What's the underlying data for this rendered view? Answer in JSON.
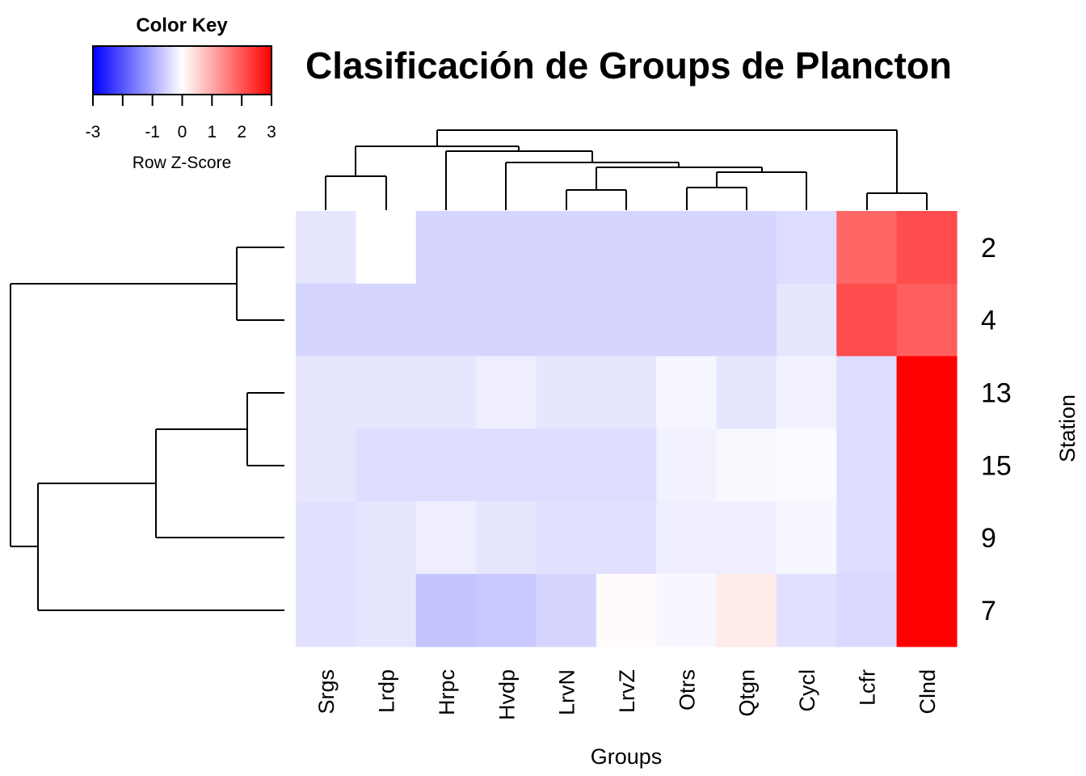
{
  "chart_data": {
    "type": "heatmap",
    "title": "Clasificación de Groups de Plancton",
    "xlabel": "Groups",
    "ylabel": "Station",
    "columns": [
      "Srgs",
      "Lrdp",
      "Hrpc",
      "Hvdp",
      "LrvN",
      "LrvZ",
      "Otrs",
      "Qtgn",
      "Cycl",
      "Lcfr",
      "Clnd"
    ],
    "rows": [
      "2",
      "4",
      "13",
      "15",
      "9",
      "7"
    ],
    "values": [
      [
        -0.3,
        0.0,
        -0.5,
        -0.5,
        -0.5,
        -0.5,
        -0.5,
        -0.5,
        -0.4,
        1.8,
        2.1
      ],
      [
        -0.5,
        -0.5,
        -0.5,
        -0.5,
        -0.5,
        -0.5,
        -0.5,
        -0.5,
        -0.3,
        2.1,
        1.9
      ],
      [
        -0.3,
        -0.3,
        -0.3,
        -0.2,
        -0.3,
        -0.3,
        -0.1,
        -0.3,
        -0.15,
        -0.4,
        3.0
      ],
      [
        -0.3,
        -0.4,
        -0.4,
        -0.4,
        -0.4,
        -0.4,
        -0.15,
        -0.08,
        -0.05,
        -0.4,
        3.0
      ],
      [
        -0.35,
        -0.3,
        -0.2,
        -0.3,
        -0.35,
        -0.35,
        -0.2,
        -0.2,
        -0.1,
        -0.4,
        3.0
      ],
      [
        -0.35,
        -0.3,
        -0.7,
        -0.65,
        -0.5,
        0.05,
        -0.1,
        0.25,
        -0.35,
        -0.45,
        3.0
      ]
    ],
    "color_key": {
      "title": "Color Key",
      "label": "Row Z-Score",
      "range": [
        -3,
        3
      ],
      "ticks": [
        "-3",
        "-1",
        "0",
        "1",
        "2",
        "3"
      ],
      "tick_values": [
        -3,
        -1,
        0,
        1,
        2,
        3
      ],
      "minor_ticks": [
        -2
      ],
      "colors": [
        "#0000ff",
        "#ffffff",
        "#ff0000"
      ]
    }
  }
}
